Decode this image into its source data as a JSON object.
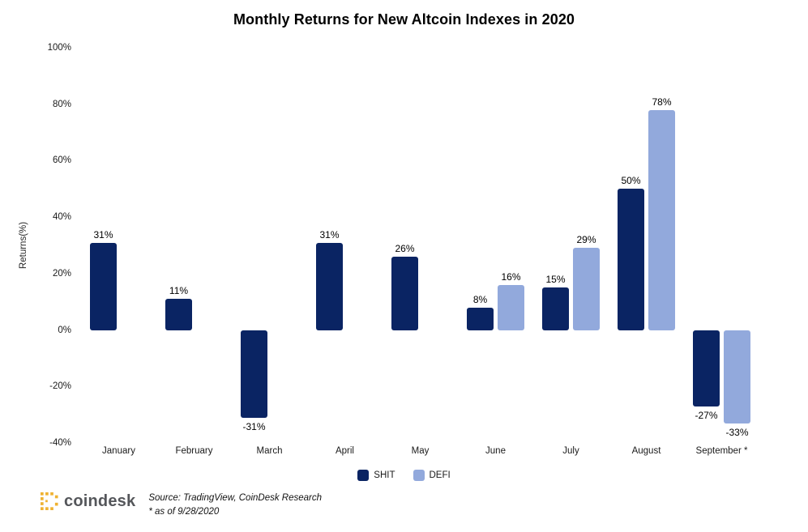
{
  "chart_data": {
    "type": "bar",
    "title": "Monthly Returns for New Altcoin Indexes in 2020",
    "xlabel": "",
    "ylabel": "Returns(%)",
    "categories": [
      "January",
      "February",
      "March",
      "April",
      "May",
      "June",
      "July",
      "August",
      "September *"
    ],
    "series": [
      {
        "name": "SHIT",
        "color": "#0a2463",
        "values": [
          31,
          11,
          -31,
          31,
          26,
          8,
          15,
          50,
          -27
        ]
      },
      {
        "name": "DEFI",
        "color": "#92a9dc",
        "values": [
          null,
          null,
          null,
          null,
          null,
          16,
          29,
          78,
          -33
        ]
      }
    ],
    "value_labels": {
      "SHIT": [
        "31%",
        "11%",
        "-31%",
        "31%",
        "26%",
        "8%",
        "15%",
        "50%",
        "-27%"
      ],
      "DEFI": [
        null,
        null,
        null,
        null,
        null,
        "16%",
        "29%",
        "78%",
        "-33%"
      ]
    },
    "value_label_format": "{v}%",
    "ylim": [
      -40,
      100
    ],
    "yticks": [
      100,
      80,
      60,
      40,
      20,
      0,
      -20,
      -40
    ],
    "ytick_format": "{v}%",
    "grid": false,
    "legend_position": "bottom-center"
  },
  "footer": {
    "brand": "coindesk",
    "source_line1": "Source: TradingView, CoinDesk Research",
    "source_line2": "* as of 9/28/2020"
  },
  "colors": {
    "shit_bar": "#0a2463",
    "defi_bar": "#92a9dc",
    "brand_gold": "#efb232",
    "brand_text": "#54565a",
    "background": "#ffffff"
  }
}
